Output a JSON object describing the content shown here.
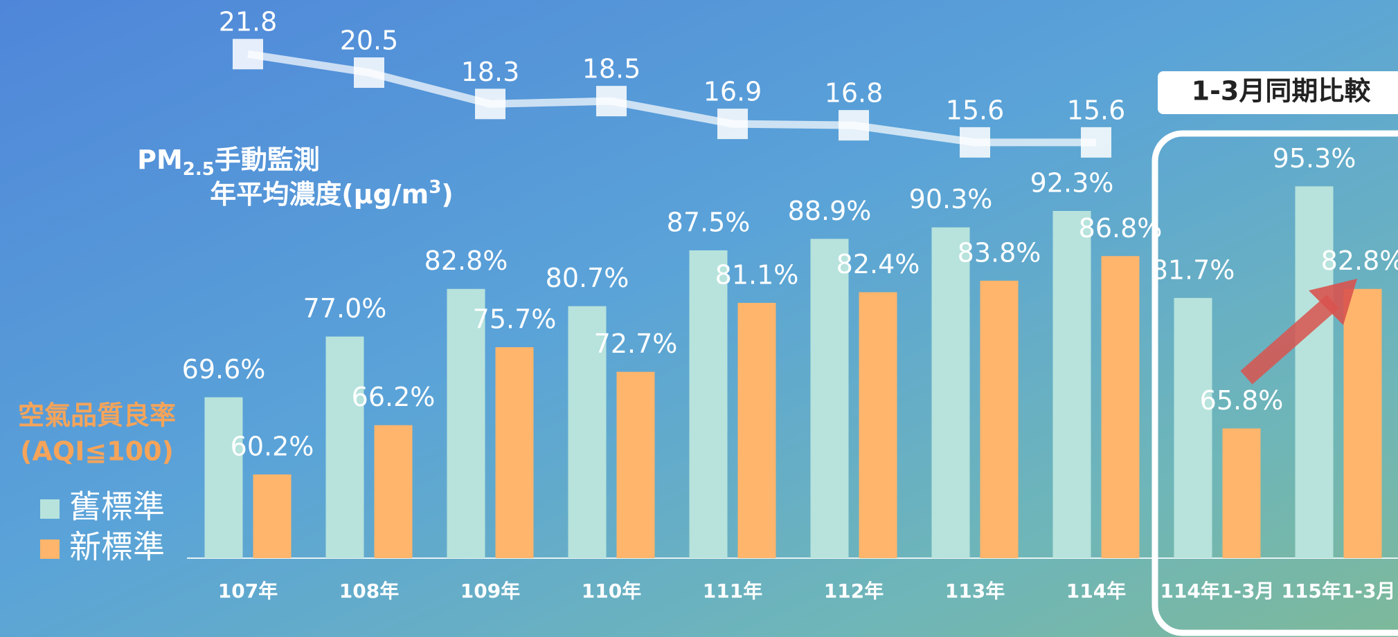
{
  "chart_data": {
    "type": "bar",
    "categories": [
      "107年",
      "108年",
      "109年",
      "110年",
      "111年",
      "112年",
      "113年",
      "114年",
      "114年1-3月",
      "115年1-3月"
    ],
    "series": [
      {
        "name": "舊標準",
        "color": "#b7e3dc",
        "values": [
          69.6,
          77.0,
          82.8,
          80.7,
          87.5,
          88.9,
          90.3,
          92.3,
          81.7,
          95.3
        ],
        "value_labels": [
          "69.6%",
          "77.0%",
          "82.8%",
          "80.7%",
          "87.5%",
          "88.9%",
          "90.3%",
          "92.3%",
          "81.7%",
          "95.3%"
        ]
      },
      {
        "name": "新標準",
        "color": "#ffb56b",
        "values": [
          60.2,
          66.2,
          75.7,
          72.7,
          81.1,
          82.4,
          83.8,
          86.8,
          65.8,
          82.8
        ],
        "value_labels": [
          "60.2%",
          "66.2%",
          "75.7%",
          "72.7%",
          "81.1%",
          "82.4%",
          "83.8%",
          "86.8%",
          "65.8%",
          "82.8%"
        ]
      },
      {
        "type": "line",
        "axis": "y2",
        "color": "#ffffff",
        "values": [
          21.8,
          20.5,
          18.3,
          18.5,
          16.9,
          16.8,
          15.6,
          15.6,
          null,
          null
        ]
      }
    ],
    "ylim": [
      50,
      118
    ],
    "y2lim": [
      -13.6,
      25.6
    ],
    "line_label": {
      "pm": "PM",
      "sub": "2.5",
      "rest": "手動監測",
      "line2": "年平均濃度(μg/m",
      "sup": "3",
      "close": ")"
    },
    "legend_title": [
      "空氣品質良率",
      "(AQI≦100)"
    ],
    "annotation": "1-3月同期比較"
  }
}
